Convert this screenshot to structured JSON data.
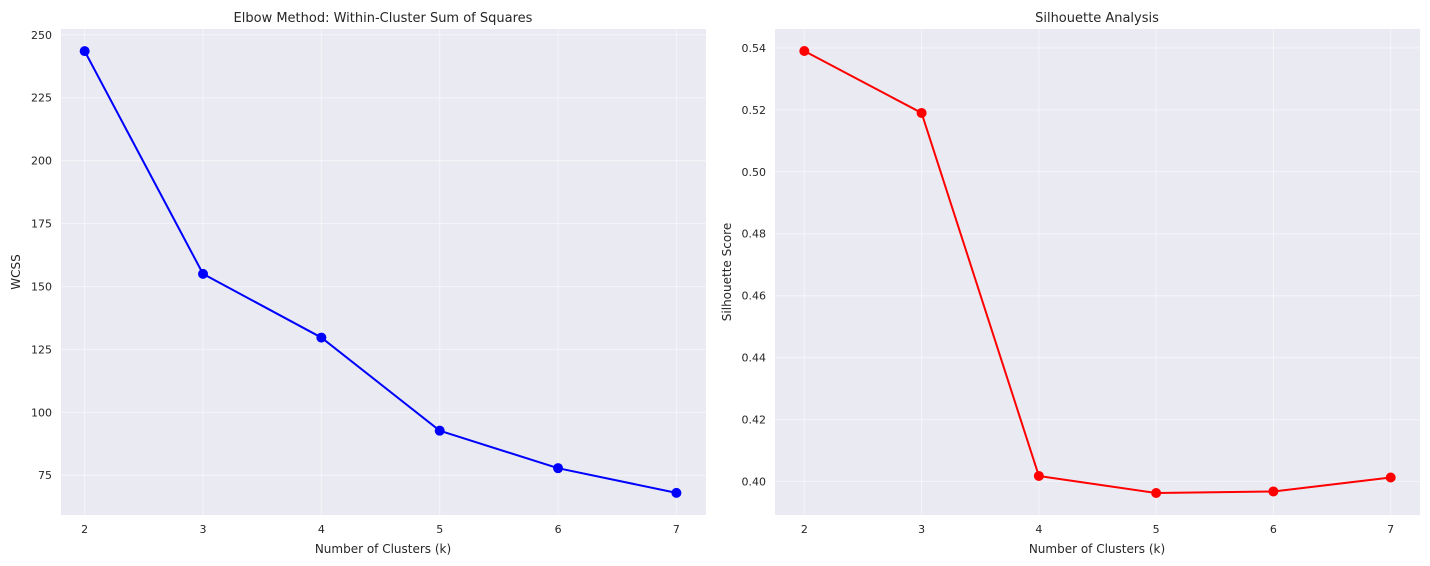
{
  "chart_data": [
    {
      "type": "line",
      "title": "Elbow Method: Within-Cluster Sum of Squares",
      "xlabel": "Number of Clusters (k)",
      "ylabel": "WCSS",
      "x": [
        2,
        3,
        4,
        5,
        6,
        7
      ],
      "series": [
        {
          "values": [
            243.5,
            155.0,
            129.7,
            92.7,
            77.8,
            68.0
          ],
          "color": "#0000ff"
        }
      ],
      "xlim": [
        1.8,
        7.25
      ],
      "ylim": [
        59.2,
        252.3
      ],
      "xticks": [
        2,
        3,
        4,
        5,
        6,
        7
      ],
      "yticks": [
        75,
        100,
        125,
        150,
        175,
        200,
        225,
        250
      ],
      "ytick_labels": [
        "75",
        "100",
        "125",
        "150",
        "175",
        "200",
        "225",
        "250"
      ],
      "grid": true,
      "marker": "circle"
    },
    {
      "type": "line",
      "title": "Silhouette Analysis",
      "xlabel": "Number of Clusters (k)",
      "ylabel": "Silhouette Score",
      "x": [
        2,
        3,
        4,
        5,
        6,
        7
      ],
      "series": [
        {
          "values": [
            0.539,
            0.519,
            0.4018,
            0.3963,
            0.3968,
            0.4013
          ],
          "color": "#ff0000"
        }
      ],
      "xlim": [
        1.75,
        7.25
      ],
      "ylim": [
        0.3892,
        0.5461
      ],
      "xticks": [
        2,
        3,
        4,
        5,
        6,
        7
      ],
      "yticks": [
        0.4,
        0.42,
        0.44,
        0.46,
        0.48,
        0.5,
        0.52,
        0.54
      ],
      "ytick_labels": [
        "0.40",
        "0.42",
        "0.44",
        "0.46",
        "0.48",
        "0.50",
        "0.52",
        "0.54"
      ],
      "grid": true,
      "marker": "circle"
    }
  ]
}
